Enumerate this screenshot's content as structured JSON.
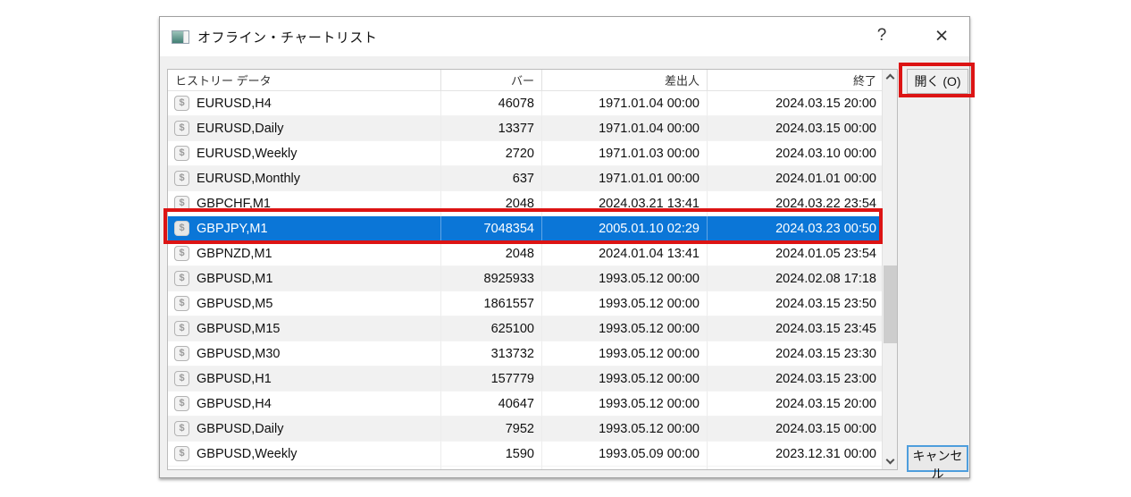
{
  "dialog": {
    "title": "オフライン・チャートリスト",
    "icons": {
      "help": "?",
      "close": "×",
      "row_currency": "$"
    }
  },
  "table": {
    "columns": {
      "history": "ヒストリー データ",
      "bars": "バー",
      "from": "差出人",
      "to": "終了"
    },
    "rows": [
      {
        "symbol": "EURUSD,H4",
        "bars": "46078",
        "from": "1971.01.04 00:00",
        "to": "2024.03.15 20:00",
        "selected": false
      },
      {
        "symbol": "EURUSD,Daily",
        "bars": "13377",
        "from": "1971.01.04 00:00",
        "to": "2024.03.15 00:00",
        "selected": false
      },
      {
        "symbol": "EURUSD,Weekly",
        "bars": "2720",
        "from": "1971.01.03 00:00",
        "to": "2024.03.10 00:00",
        "selected": false
      },
      {
        "symbol": "EURUSD,Monthly",
        "bars": "637",
        "from": "1971.01.01 00:00",
        "to": "2024.01.01 00:00",
        "selected": false
      },
      {
        "symbol": "GBPCHF,M1",
        "bars": "2048",
        "from": "2024.03.21 13:41",
        "to": "2024.03.22 23:54",
        "selected": false
      },
      {
        "symbol": "GBPJPY,M1",
        "bars": "7048354",
        "from": "2005.01.10 02:29",
        "to": "2024.03.23 00:50",
        "selected": true
      },
      {
        "symbol": "GBPNZD,M1",
        "bars": "2048",
        "from": "2024.01.04 13:41",
        "to": "2024.01.05 23:54",
        "selected": false
      },
      {
        "symbol": "GBPUSD,M1",
        "bars": "8925933",
        "from": "1993.05.12 00:00",
        "to": "2024.02.08 17:18",
        "selected": false
      },
      {
        "symbol": "GBPUSD,M5",
        "bars": "1861557",
        "from": "1993.05.12 00:00",
        "to": "2024.03.15 23:50",
        "selected": false
      },
      {
        "symbol": "GBPUSD,M15",
        "bars": "625100",
        "from": "1993.05.12 00:00",
        "to": "2024.03.15 23:45",
        "selected": false
      },
      {
        "symbol": "GBPUSD,M30",
        "bars": "313732",
        "from": "1993.05.12 00:00",
        "to": "2024.03.15 23:30",
        "selected": false
      },
      {
        "symbol": "GBPUSD,H1",
        "bars": "157779",
        "from": "1993.05.12 00:00",
        "to": "2024.03.15 23:00",
        "selected": false
      },
      {
        "symbol": "GBPUSD,H4",
        "bars": "40647",
        "from": "1993.05.12 00:00",
        "to": "2024.03.15 20:00",
        "selected": false
      },
      {
        "symbol": "GBPUSD,Daily",
        "bars": "7952",
        "from": "1993.05.12 00:00",
        "to": "2024.03.15 00:00",
        "selected": false
      },
      {
        "symbol": "GBPUSD,Weekly",
        "bars": "1590",
        "from": "1993.05.09 00:00",
        "to": "2023.12.31 00:00",
        "selected": false
      }
    ]
  },
  "buttons": {
    "open": "開く (O)",
    "cancel": "キャンセル"
  },
  "colors": {
    "selection_blue": "#0b76d7",
    "annotation_red": "#dc1414",
    "focus_accent": "#4e9edd",
    "dialog_bg": "#f0f0f0"
  }
}
